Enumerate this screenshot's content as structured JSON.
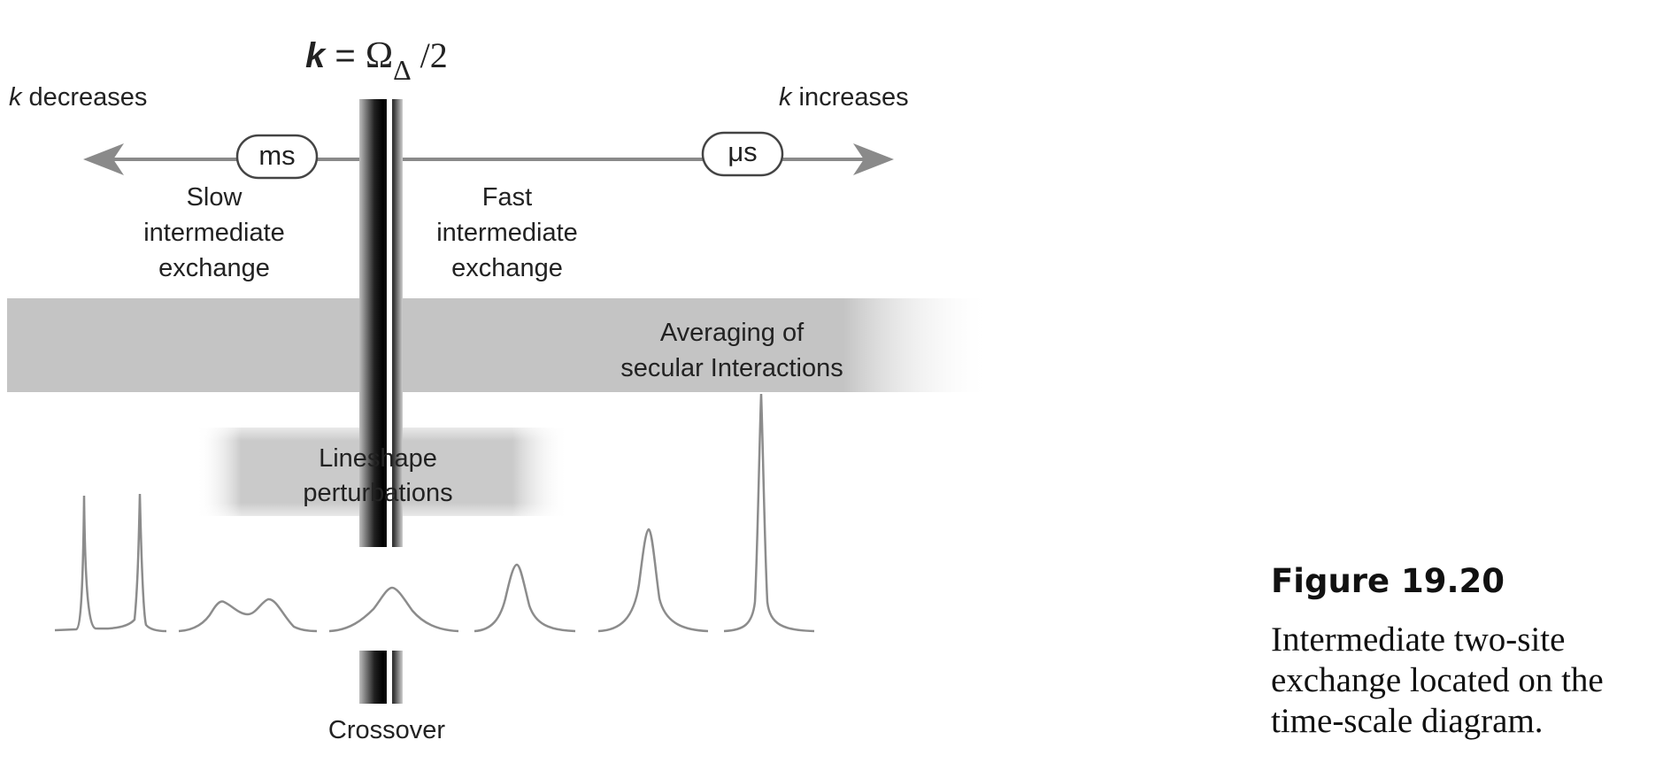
{
  "formula": {
    "k": "k",
    "eq": " = ",
    "omega": "Ω",
    "sub": "Δ",
    "div": " /2"
  },
  "axis": {
    "left_label_var": "k",
    "left_label_text": " decreases",
    "right_label_var": "k",
    "right_label_text": " increases",
    "left_pill": "ms",
    "right_pill": "μs"
  },
  "regions": {
    "slow": [
      "Slow",
      "intermediate",
      "exchange"
    ],
    "fast": [
      "Fast",
      "intermediate",
      "exchange"
    ]
  },
  "bands": {
    "averaging": [
      "Averaging of",
      "secular Interactions"
    ],
    "lineshape": [
      "Lineshape",
      "perturbations"
    ]
  },
  "crossover_label": "Crossover",
  "figure": {
    "title": "Figure 19.20",
    "text": "Intermediate two-site\nexchange located on the\ntime-scale diagram."
  },
  "colors": {
    "arrow": "#8a8a8a",
    "band": "#c4c4c4",
    "spectrum": "#8c8c8c"
  }
}
